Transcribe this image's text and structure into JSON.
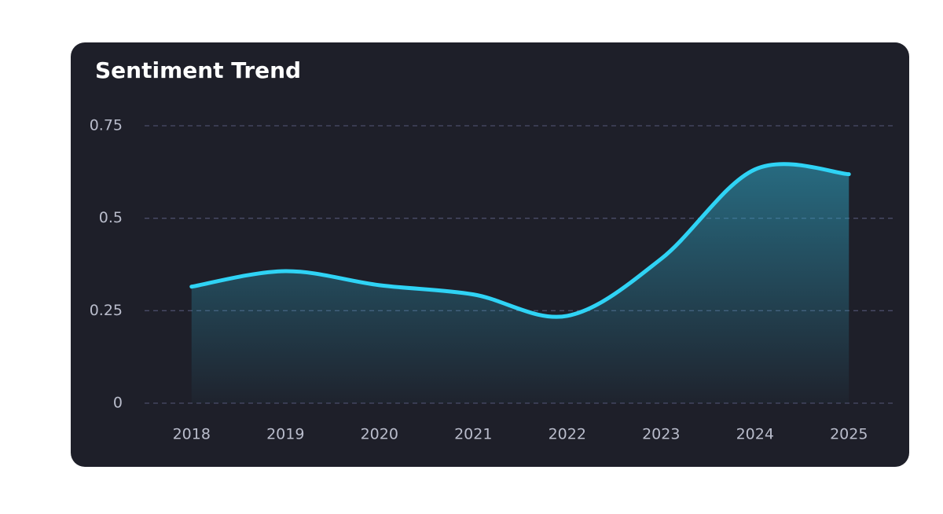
{
  "chart_data": {
    "type": "area",
    "title": "Sentiment Trend",
    "categories": [
      "2018",
      "2019",
      "2020",
      "2021",
      "2022",
      "2023",
      "2024",
      "2025"
    ],
    "values": [
      0.315,
      0.357,
      0.319,
      0.294,
      0.236,
      0.39,
      0.632,
      0.619
    ],
    "color": "#2fd3f5",
    "ylim": [
      0,
      0.75
    ],
    "yticks": [
      0,
      0.25,
      0.5,
      0.75
    ],
    "grid": true
  }
}
